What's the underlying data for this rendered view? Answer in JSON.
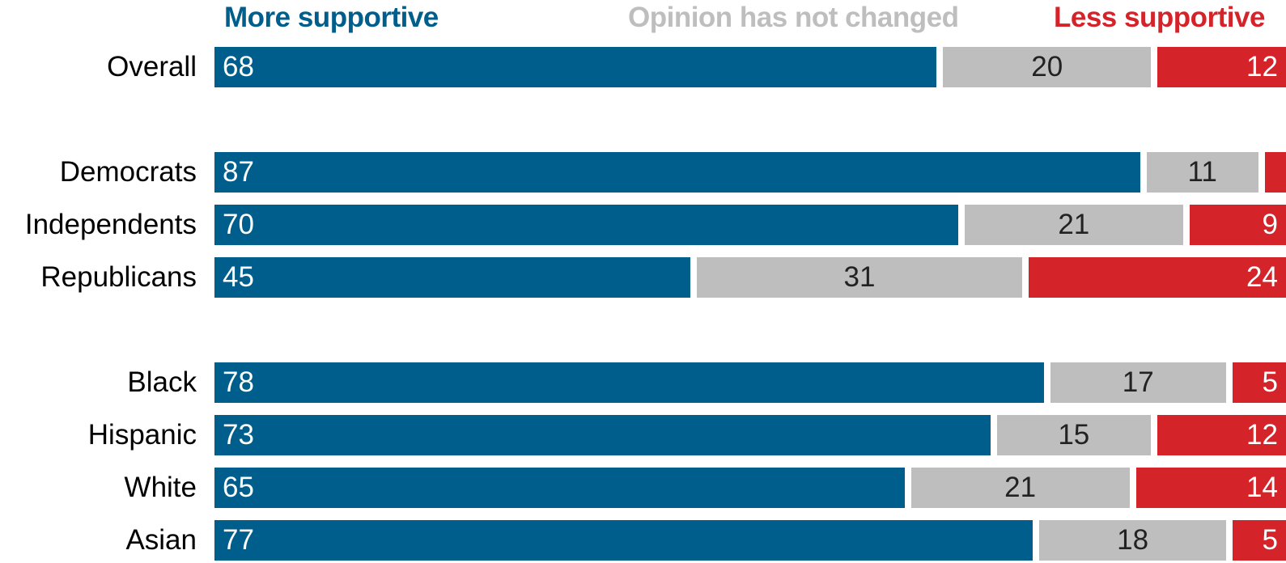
{
  "chart_data": {
    "type": "bar",
    "orientation": "horizontal",
    "stacked": true,
    "legend": [
      {
        "key": "more",
        "label": "More supportive",
        "color": "#005e8c"
      },
      {
        "key": "same",
        "label": "Opinion has not changed",
        "color": "#bebebe"
      },
      {
        "key": "less",
        "label": "Less supportive",
        "color": "#d5232a"
      }
    ],
    "groups": [
      {
        "rows": [
          {
            "category": "Overall",
            "more": 68,
            "same": 20,
            "less": 12
          }
        ]
      },
      {
        "rows": [
          {
            "category": "Democrats",
            "more": 87,
            "same": 11,
            "less": 2
          },
          {
            "category": "Independents",
            "more": 70,
            "same": 21,
            "less": 9
          },
          {
            "category": "Republicans",
            "more": 45,
            "same": 31,
            "less": 24
          }
        ]
      },
      {
        "rows": [
          {
            "category": "Black",
            "more": 78,
            "same": 17,
            "less": 5
          },
          {
            "category": "Hispanic",
            "more": 73,
            "same": 15,
            "less": 12
          },
          {
            "category": "White",
            "more": 65,
            "same": 21,
            "less": 14
          },
          {
            "category": "Asian",
            "more": 77,
            "same": 18,
            "less": 5
          }
        ]
      }
    ],
    "xlim": [
      0,
      100
    ],
    "grid": false
  }
}
